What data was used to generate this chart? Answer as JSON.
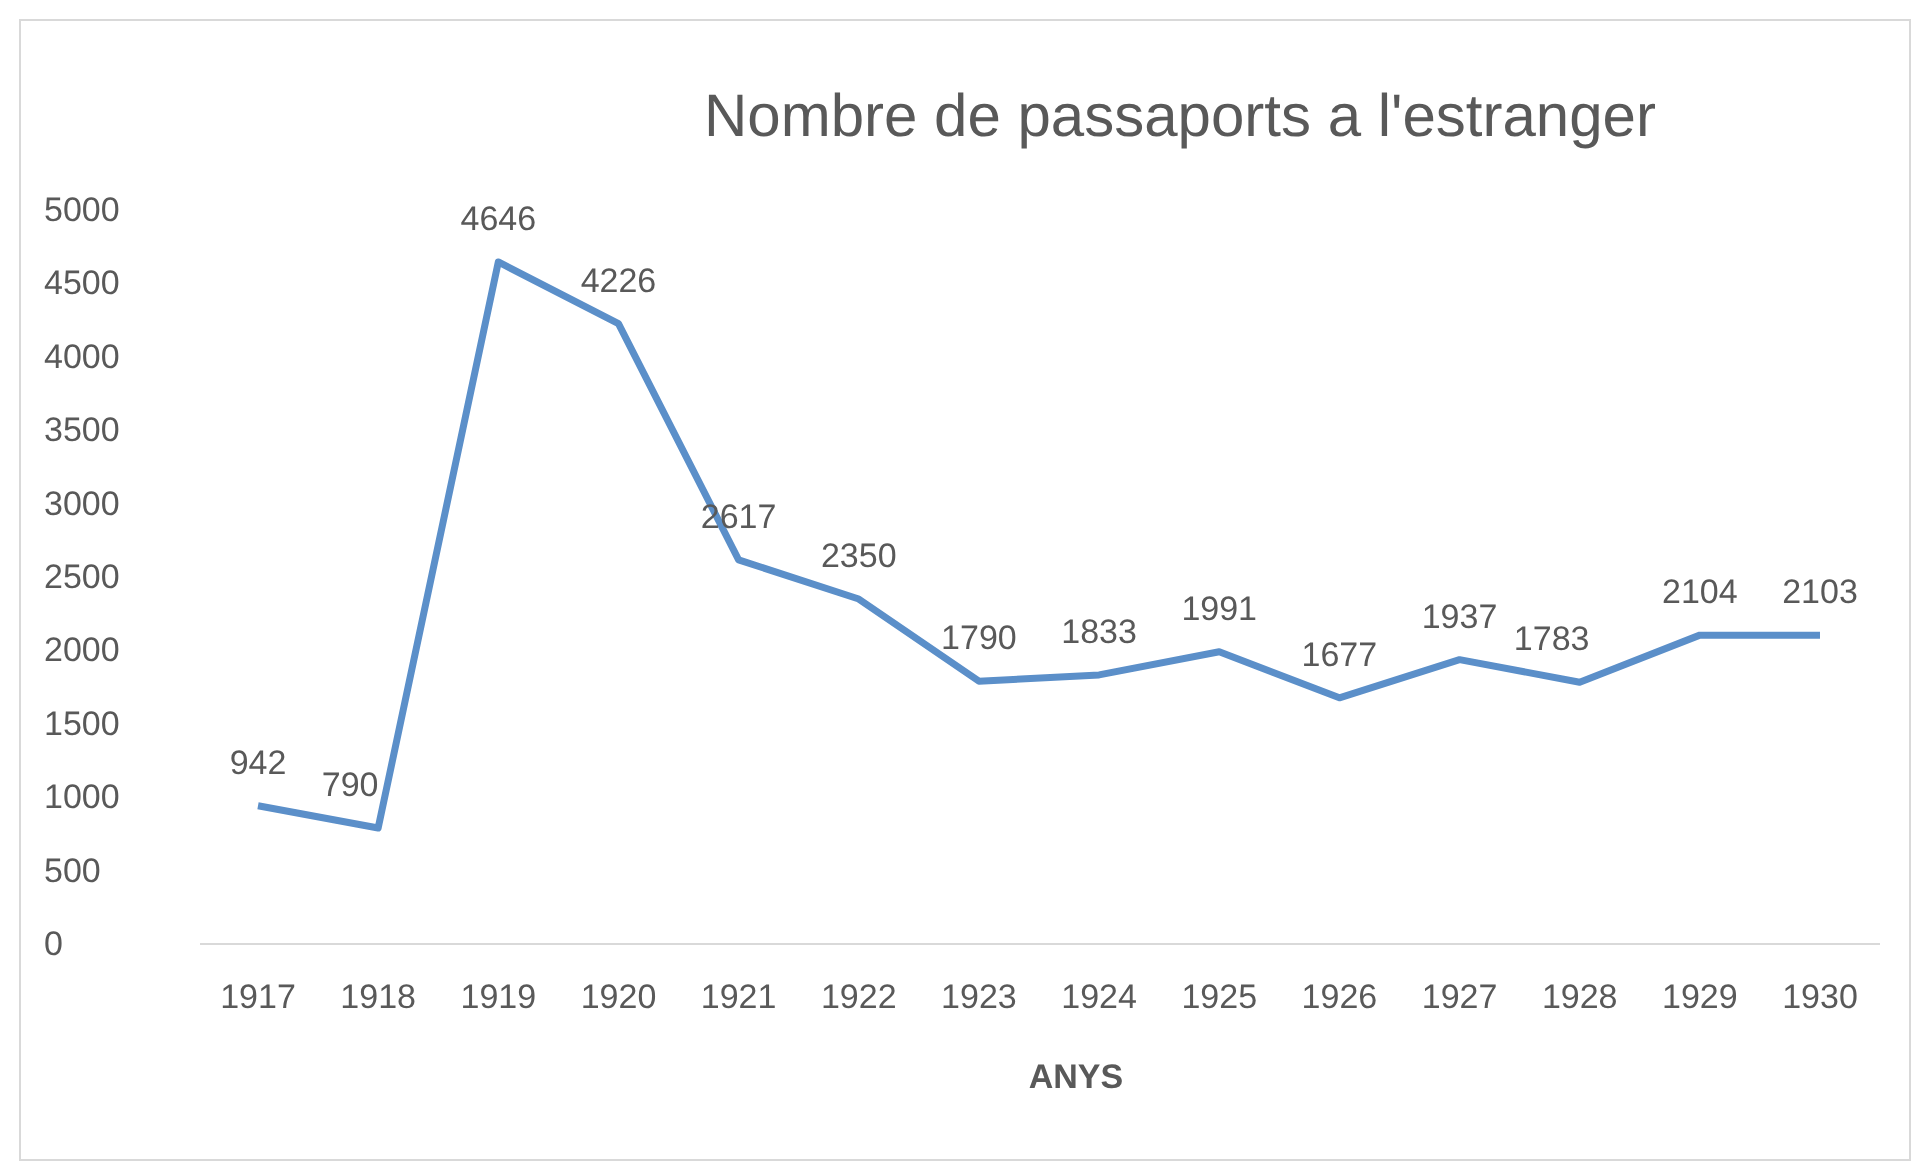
{
  "chart_data": {
    "type": "line",
    "title": "Nombre de passaports a l'estranger",
    "xlabel": "ANYS",
    "categories": [
      "1917",
      "1918",
      "1919",
      "1920",
      "1921",
      "1922",
      "1923",
      "1924",
      "1925",
      "1926",
      "1927",
      "1928",
      "1929",
      "1930"
    ],
    "series": [
      {
        "color": "#5b8fc9",
        "values": [
          942,
          790,
          4646,
          4226,
          2617,
          2350,
          1790,
          1833,
          1991,
          1677,
          1937,
          1783,
          2104,
          2103
        ]
      }
    ],
    "ylim": [
      0,
      5000
    ],
    "yticks": [
      0,
      500,
      1000,
      1500,
      2000,
      2500,
      3000,
      3500,
      4000,
      4500,
      5000
    ],
    "grid": false,
    "marker": "none",
    "line_style": "solid",
    "data_labels": true
  }
}
